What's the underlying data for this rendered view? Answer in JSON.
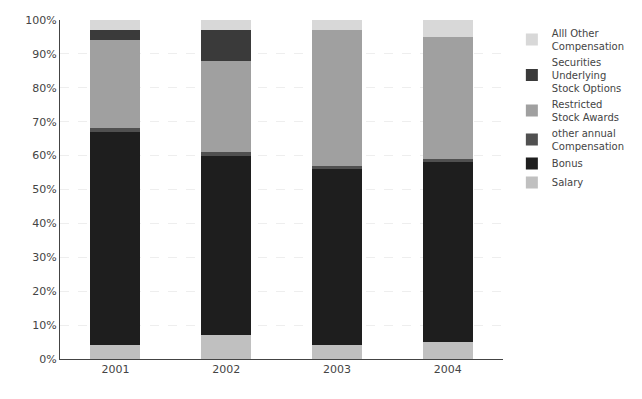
{
  "chart_data": {
    "type": "bar",
    "stacked": true,
    "grid": true,
    "legend": "right",
    "categories": [
      "2001",
      "2002",
      "2003",
      "2004"
    ],
    "series": [
      {
        "name": "Salary",
        "color": "#c0c0c0",
        "values": [
          0.04,
          0.07,
          0.04,
          0.05
        ]
      },
      {
        "name": "Bonus",
        "color": "#1e1e1e",
        "values": [
          0.63,
          0.53,
          0.52,
          0.53
        ]
      },
      {
        "name": "other annual\nCompensation",
        "color": "#505050",
        "values": [
          0.01,
          0.01,
          0.01,
          0.01
        ]
      },
      {
        "name": "Restricted\nStock Awards",
        "color": "#a0a0a0",
        "values": [
          0.26,
          0.27,
          0.4,
          0.36
        ]
      },
      {
        "name": "Securities\nUnderlying\nStock Options",
        "color": "#3a3a3a",
        "values": [
          0.03,
          0.09,
          0.0,
          0.0
        ]
      },
      {
        "name": "Alll Other\nCompensation",
        "color": "#d8d8d8",
        "values": [
          0.03,
          0.03,
          0.03,
          0.05
        ]
      }
    ],
    "ylim": [
      0,
      1.0
    ],
    "yticks": [
      {
        "value": 0.0,
        "label": "0%"
      },
      {
        "value": 0.1,
        "label": "10%"
      },
      {
        "value": 0.2,
        "label": "20%"
      },
      {
        "value": 0.3,
        "label": "30%"
      },
      {
        "value": 0.4,
        "label": "40%"
      },
      {
        "value": 0.5,
        "label": "50%"
      },
      {
        "value": 0.6,
        "label": "60%"
      },
      {
        "value": 0.7,
        "label": "70%"
      },
      {
        "value": 0.8,
        "label": "80%"
      },
      {
        "value": 0.9,
        "label": "90%"
      },
      {
        "value": 1.0,
        "label": "100%"
      }
    ]
  }
}
